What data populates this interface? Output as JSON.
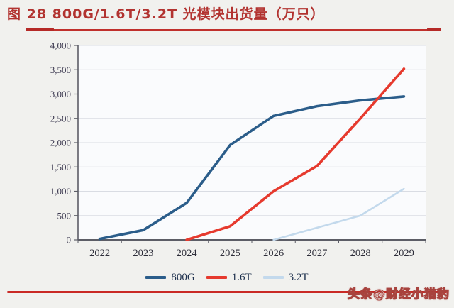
{
  "page": {
    "title": "图 28 800G/1.6T/3.2T 光模块出货量（万只）",
    "watermark": "头条@财经小猎豹",
    "accent_red": "#c0302c",
    "bottom_rule_red": "#c92a25"
  },
  "chart_data": {
    "type": "line",
    "title": "图 28 800G/1.6T/3.2T 光模块出货量（万只）",
    "title_unit": "万只",
    "categories": [
      "2022",
      "2023",
      "2024",
      "2025",
      "2026",
      "2027",
      "2028",
      "2029"
    ],
    "series": [
      {
        "name": "800G",
        "color": "#2b5d8a",
        "values": [
          20,
          200,
          760,
          1950,
          2550,
          2750,
          2870,
          2950
        ]
      },
      {
        "name": "1.6T",
        "color": "#e63a2e",
        "values": [
          null,
          null,
          0,
          280,
          1000,
          1520,
          2500,
          3520
        ]
      },
      {
        "name": "3.2T",
        "color": "#c3d9ec",
        "values": [
          null,
          null,
          null,
          null,
          0,
          250,
          500,
          1050
        ]
      }
    ],
    "xlabel": "",
    "ylabel": "",
    "ylim": [
      0,
      4000
    ],
    "ytick_step": 500,
    "ytick_labels": [
      "0",
      "500",
      "1,000",
      "1,500",
      "2,000",
      "2,500",
      "3,000",
      "3,500",
      "4,000"
    ],
    "grid": true,
    "legend_position": "bottom",
    "axis_color": "#5c5d66",
    "grid_color": "#d9dce3",
    "tick_label_color": "#3c3950",
    "plot_bg": "#fafbfd"
  }
}
